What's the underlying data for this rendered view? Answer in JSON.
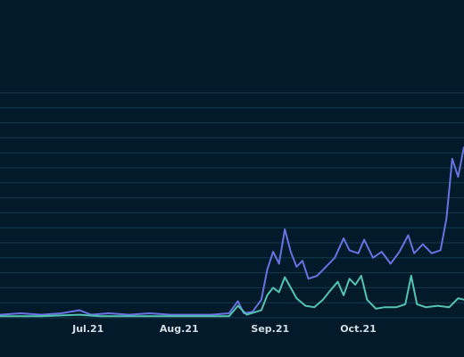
{
  "colors": {
    "background": "#031a2b",
    "gridline": "#153a4d",
    "series_purple": "#6673e0",
    "series_teal": "#54c4b2",
    "tick_text": "#d3dde6"
  },
  "chart_data": {
    "type": "line",
    "title": "",
    "xlabel": "",
    "ylabel": "",
    "x_ticks": [
      {
        "label": "Jul.21",
        "date": "2021-07-01"
      },
      {
        "label": "Aug.21",
        "date": "2021-08-01"
      },
      {
        "label": "Sep.21",
        "date": "2021-09-01"
      },
      {
        "label": "Oct.21",
        "date": "2021-10-01"
      }
    ],
    "x_domain": [
      "2021-06-01",
      "2021-11-06"
    ],
    "y_ticks": [
      0,
      1,
      2,
      3,
      4,
      5,
      6,
      7,
      8,
      9,
      10,
      11,
      12,
      13,
      14,
      15
    ],
    "y_labels_visible": false,
    "ylim": [
      0,
      15
    ],
    "grid": true,
    "legend": "none",
    "series": [
      {
        "color": "#6673e0",
        "points": [
          [
            "2021-06-01",
            0.2
          ],
          [
            "2021-06-08",
            0.3
          ],
          [
            "2021-06-15",
            0.2
          ],
          [
            "2021-06-22",
            0.3
          ],
          [
            "2021-06-28",
            0.5
          ],
          [
            "2021-07-02",
            0.2
          ],
          [
            "2021-07-08",
            0.3
          ],
          [
            "2021-07-15",
            0.2
          ],
          [
            "2021-07-22",
            0.3
          ],
          [
            "2021-07-29",
            0.2
          ],
          [
            "2021-08-05",
            0.2
          ],
          [
            "2021-08-12",
            0.2
          ],
          [
            "2021-08-18",
            0.3
          ],
          [
            "2021-08-21",
            1.1
          ],
          [
            "2021-08-23",
            0.3
          ],
          [
            "2021-08-26",
            0.4
          ],
          [
            "2021-08-29",
            1.2
          ],
          [
            "2021-08-31",
            3.2
          ],
          [
            "2021-09-02",
            4.4
          ],
          [
            "2021-09-04",
            3.6
          ],
          [
            "2021-09-06",
            5.9
          ],
          [
            "2021-09-08",
            4.4
          ],
          [
            "2021-09-10",
            3.4
          ],
          [
            "2021-09-12",
            3.8
          ],
          [
            "2021-09-14",
            2.6
          ],
          [
            "2021-09-17",
            2.8
          ],
          [
            "2021-09-20",
            3.4
          ],
          [
            "2021-09-23",
            4.0
          ],
          [
            "2021-09-26",
            5.3
          ],
          [
            "2021-09-28",
            4.5
          ],
          [
            "2021-10-01",
            4.3
          ],
          [
            "2021-10-03",
            5.2
          ],
          [
            "2021-10-06",
            4.0
          ],
          [
            "2021-10-09",
            4.4
          ],
          [
            "2021-10-12",
            3.6
          ],
          [
            "2021-10-15",
            4.4
          ],
          [
            "2021-10-18",
            5.5
          ],
          [
            "2021-10-20",
            4.3
          ],
          [
            "2021-10-23",
            4.9
          ],
          [
            "2021-10-26",
            4.3
          ],
          [
            "2021-10-29",
            4.5
          ],
          [
            "2021-10-31",
            6.6
          ],
          [
            "2021-11-02",
            10.6
          ],
          [
            "2021-11-04",
            9.4
          ],
          [
            "2021-11-06",
            11.4
          ]
        ]
      },
      {
        "color": "#54c4b2",
        "points": [
          [
            "2021-06-01",
            0.1
          ],
          [
            "2021-06-15",
            0.1
          ],
          [
            "2021-06-28",
            0.2
          ],
          [
            "2021-07-05",
            0.1
          ],
          [
            "2021-07-20",
            0.1
          ],
          [
            "2021-08-05",
            0.1
          ],
          [
            "2021-08-18",
            0.1
          ],
          [
            "2021-08-21",
            0.8
          ],
          [
            "2021-08-24",
            0.2
          ],
          [
            "2021-08-29",
            0.5
          ],
          [
            "2021-08-31",
            1.5
          ],
          [
            "2021-09-02",
            2.0
          ],
          [
            "2021-09-04",
            1.7
          ],
          [
            "2021-09-06",
            2.7
          ],
          [
            "2021-09-08",
            2.0
          ],
          [
            "2021-09-10",
            1.3
          ],
          [
            "2021-09-13",
            0.8
          ],
          [
            "2021-09-16",
            0.7
          ],
          [
            "2021-09-19",
            1.2
          ],
          [
            "2021-09-21",
            1.7
          ],
          [
            "2021-09-24",
            2.4
          ],
          [
            "2021-09-26",
            1.5
          ],
          [
            "2021-09-28",
            2.6
          ],
          [
            "2021-09-30",
            2.2
          ],
          [
            "2021-10-02",
            2.8
          ],
          [
            "2021-10-04",
            1.2
          ],
          [
            "2021-10-07",
            0.6
          ],
          [
            "2021-10-10",
            0.7
          ],
          [
            "2021-10-14",
            0.7
          ],
          [
            "2021-10-17",
            0.9
          ],
          [
            "2021-10-19",
            2.8
          ],
          [
            "2021-10-21",
            0.9
          ],
          [
            "2021-10-24",
            0.7
          ],
          [
            "2021-10-28",
            0.8
          ],
          [
            "2021-11-01",
            0.7
          ],
          [
            "2021-11-04",
            1.3
          ],
          [
            "2021-11-06",
            1.2
          ]
        ]
      }
    ]
  }
}
